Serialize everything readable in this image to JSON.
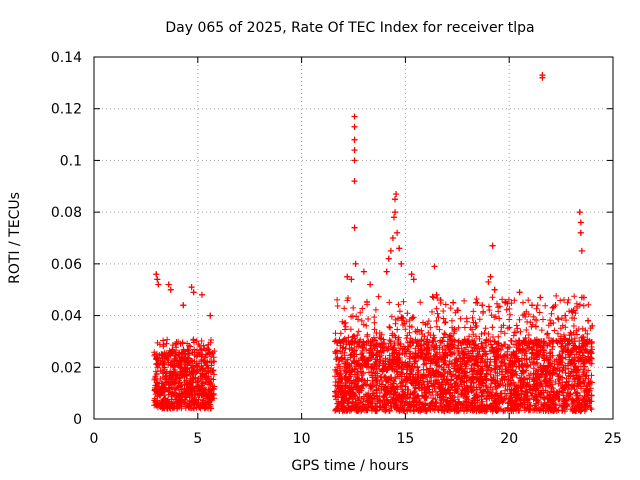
{
  "chart_data": {
    "type": "scatter",
    "title": "Day 065 of 2025, Rate Of TEC Index for receiver tlpa",
    "xlabel": "GPS time / hours",
    "ylabel": "ROTI / TECUs",
    "xlim": [
      0,
      25
    ],
    "ylim": [
      0,
      0.14
    ],
    "xticks": [
      "0",
      "5",
      "10",
      "15",
      "20",
      "25"
    ],
    "yticks": [
      "0",
      "0.02",
      "0.04",
      "0.06",
      "0.08",
      "0.1",
      "0.12",
      "0.14"
    ],
    "grid": true,
    "marker": "+",
    "colors": {
      "points": "#ff0000",
      "grid": "#a0a0a0",
      "axis": "#000000"
    },
    "segments": [
      {
        "x_range": [
          2.9,
          5.8
        ],
        "base": [
          0.004,
          0.025
        ],
        "peak": 0.056
      },
      {
        "x_range": [
          11.6,
          24.0
        ],
        "base": [
          0.003,
          0.03
        ],
        "peak": 0.087
      }
    ],
    "points": [
      [
        3.0,
        0.056
      ],
      [
        3.05,
        0.054
      ],
      [
        3.1,
        0.052
      ],
      [
        3.6,
        0.052
      ],
      [
        3.7,
        0.05
      ],
      [
        4.7,
        0.051
      ],
      [
        4.8,
        0.049
      ],
      [
        5.2,
        0.048
      ],
      [
        5.6,
        0.04
      ],
      [
        4.3,
        0.044
      ],
      [
        12.2,
        0.055
      ],
      [
        12.4,
        0.054
      ],
      [
        12.55,
        0.117
      ],
      [
        12.55,
        0.113
      ],
      [
        12.55,
        0.108
      ],
      [
        12.55,
        0.104
      ],
      [
        12.55,
        0.1
      ],
      [
        12.55,
        0.092
      ],
      [
        12.55,
        0.074
      ],
      [
        12.6,
        0.06
      ],
      [
        13.0,
        0.057
      ],
      [
        13.3,
        0.052
      ],
      [
        14.1,
        0.057
      ],
      [
        14.2,
        0.062
      ],
      [
        14.3,
        0.065
      ],
      [
        14.4,
        0.07
      ],
      [
        14.45,
        0.078
      ],
      [
        14.5,
        0.08
      ],
      [
        14.5,
        0.085
      ],
      [
        14.55,
        0.087
      ],
      [
        14.6,
        0.072
      ],
      [
        14.7,
        0.066
      ],
      [
        14.8,
        0.06
      ],
      [
        15.3,
        0.056
      ],
      [
        15.4,
        0.054
      ],
      [
        16.4,
        0.059
      ],
      [
        16.5,
        0.048
      ],
      [
        16.7,
        0.046
      ],
      [
        17.3,
        0.045
      ],
      [
        17.5,
        0.042
      ],
      [
        18.4,
        0.045
      ],
      [
        18.7,
        0.044
      ],
      [
        19.0,
        0.053
      ],
      [
        19.1,
        0.055
      ],
      [
        19.2,
        0.067
      ],
      [
        19.3,
        0.05
      ],
      [
        19.8,
        0.045
      ],
      [
        20.5,
        0.049
      ],
      [
        21.1,
        0.044
      ],
      [
        21.5,
        0.047
      ],
      [
        21.6,
        0.132
      ],
      [
        21.6,
        0.133
      ],
      [
        22.1,
        0.043
      ],
      [
        22.7,
        0.04
      ],
      [
        23.1,
        0.042
      ],
      [
        23.4,
        0.08
      ],
      [
        23.45,
        0.076
      ],
      [
        23.45,
        0.072
      ],
      [
        23.5,
        0.065
      ],
      [
        23.5,
        0.047
      ],
      [
        23.6,
        0.047
      ],
      [
        23.8,
        0.038
      ],
      [
        24.0,
        0.036
      ]
    ]
  }
}
